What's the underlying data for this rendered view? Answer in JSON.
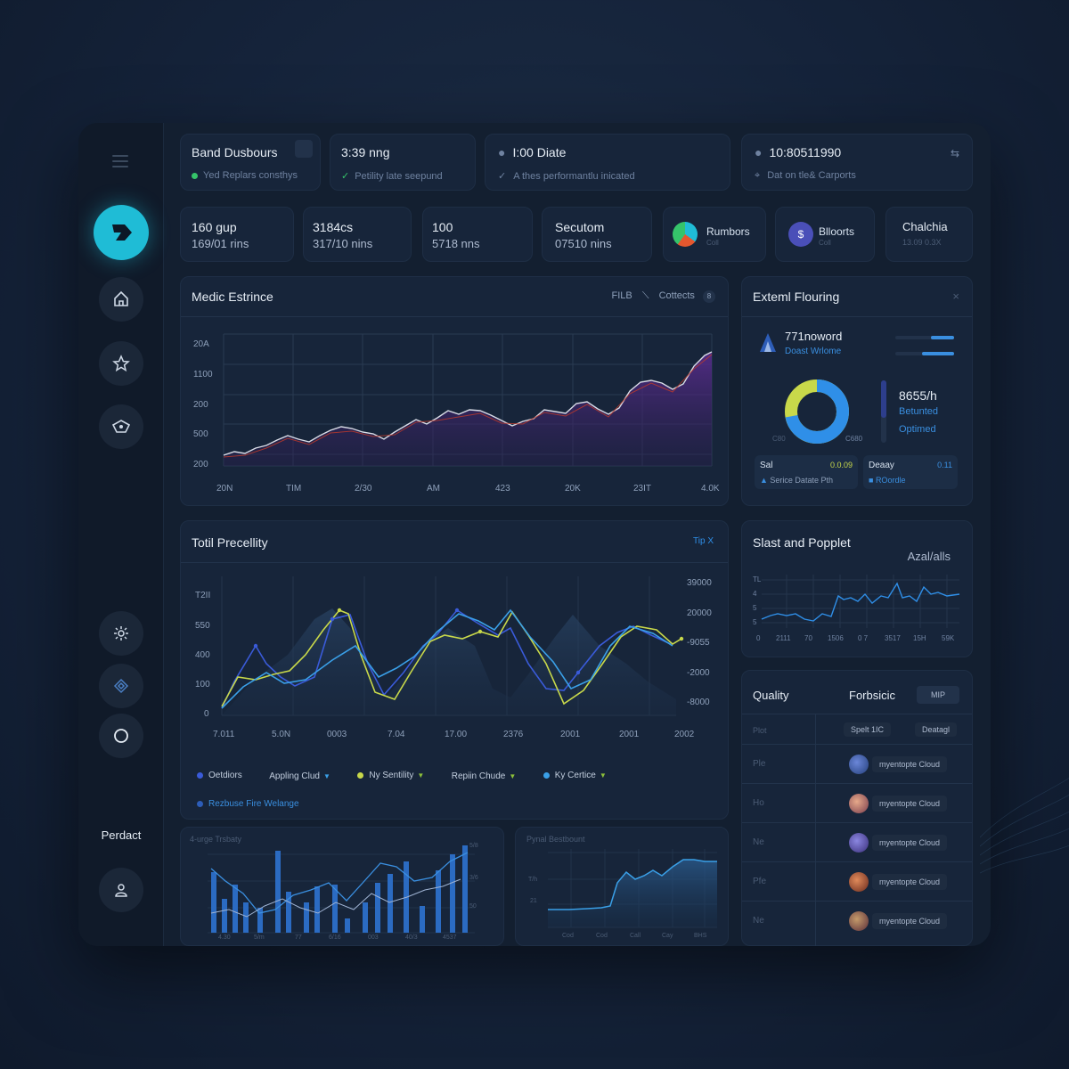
{
  "sidebar": {
    "label": "Perdact",
    "icons": [
      "menu-icon",
      "logo-icon",
      "home-icon",
      "star-icon",
      "shield-icon",
      "settings-icon",
      "layers-icon",
      "circle-icon",
      "user-icon"
    ]
  },
  "top_cards": [
    {
      "title": "Band Dusbours",
      "sub": "Yed Replars consthys",
      "dot_color": "#35c46a"
    },
    {
      "title": "3:39 nng",
      "sub": "Petility late seepund",
      "dot_color": "#35c46a"
    },
    {
      "title": "I:00 Diate",
      "sub": "A thes performantlu inicated",
      "dot_color": "#6f82a0"
    },
    {
      "title": "10:80511990",
      "sub": "Dat on tle& Carports",
      "dot_color": "#6f82a0"
    }
  ],
  "stats": [
    {
      "line1": "160 gup",
      "line2": "169/01 rins"
    },
    {
      "line1": "3184cs",
      "line2": "317/10 nins"
    },
    {
      "line1": "100",
      "line2": "5718 nns"
    },
    {
      "line1": "Secutom",
      "line2": "07510 nins"
    },
    {
      "line1": "Rumbors",
      "line2": "Coll"
    },
    {
      "line1": "Blloorts",
      "line2": "Coll"
    },
    {
      "line1": "Chalchia",
      "line2": "13.09 0.3X"
    }
  ],
  "medic": {
    "title": "Medic Estrince",
    "actions": [
      "FILB",
      "Cottects"
    ],
    "y_ticks": [
      "20A",
      "1100",
      "200",
      "500",
      "200"
    ],
    "x_ticks": [
      "20N",
      "TIM",
      "2/30",
      "AM",
      "423",
      "20K",
      "23IT",
      "4.0K"
    ]
  },
  "extent": {
    "title": "Exteml Flouring",
    "user_name": "771noword",
    "user_sub": "Doast Wrlome",
    "big_value": "8655/h",
    "label_a": "Betunted",
    "label_b": "Optimed",
    "donut_left": "C80",
    "donut_right": "C680",
    "donut_fraction": 0.72,
    "box1_label": "Sal",
    "box1_value": "0.0.09",
    "box1_sub": "Serice Datate Pth",
    "box2_label": "Deaay",
    "box2_value": "0.11",
    "box2_sub": "ROordle"
  },
  "total": {
    "title": "Totil Precellity",
    "action": "Tip X",
    "y_left": [
      "T2II",
      "550",
      "400",
      "100",
      "0"
    ],
    "y_right": [
      "39000",
      "20000",
      "-9055",
      "-2000",
      "-8000"
    ],
    "x_ticks": [
      "7.011",
      "5.0N",
      "0003",
      "7.04",
      "17.00",
      "2376",
      "2001",
      "2001",
      "2002"
    ],
    "legend": [
      {
        "label": "Oetdiors",
        "color": "#3a5bd9"
      },
      {
        "label": "Appling Clud",
        "color": "#3aa0e8"
      },
      {
        "label": "Ny Sentility",
        "color": "#c8d84a"
      },
      {
        "label": "Repiin Chude",
        "color": "#c8d84a"
      },
      {
        "label": "Ky Certice",
        "color": "#3aa0e8"
      }
    ],
    "footer": "Rezbuse Fire Welange"
  },
  "slast": {
    "title": "Slast and Popplet",
    "sub": "Azal/alls",
    "y_ticks": [
      "TL",
      "4",
      "5",
      "5"
    ],
    "x_ticks": [
      "0",
      "2111",
      "70",
      "1506",
      "0 7",
      "3517",
      "15H",
      "59K"
    ]
  },
  "quality": {
    "title": "Quality",
    "tab": "Forbsicic",
    "tab_btn": "MIP",
    "col_head": "Plot",
    "pill1": "Spelt 1IC",
    "pill2": "Deatagl",
    "rows": [
      {
        "key": "Ple",
        "name": "myentopte Cloud"
      },
      {
        "key": "Ho",
        "name": "myentopte Cloud"
      },
      {
        "key": "Ne",
        "name": "myentopte Cloud"
      },
      {
        "key": "Pfe",
        "name": "myentopte Cloud"
      },
      {
        "key": "Ne",
        "name": "myentopte Cloud"
      }
    ]
  },
  "bottom_left": {
    "title": "4-urge Trsbaty",
    "x_ticks": [
      "4.30",
      "5/m",
      "77",
      "6/16",
      "003",
      "40/3",
      "4537"
    ],
    "right_ticks": [
      "5/8",
      "3/6",
      "50"
    ]
  },
  "bottom_mid": {
    "title": "Pynal Bestbount",
    "y_ticks": [
      "T/h",
      "21"
    ],
    "x_ticks": [
      "Cod",
      "Cod",
      "Call",
      "Cay",
      "BHS"
    ]
  }
}
